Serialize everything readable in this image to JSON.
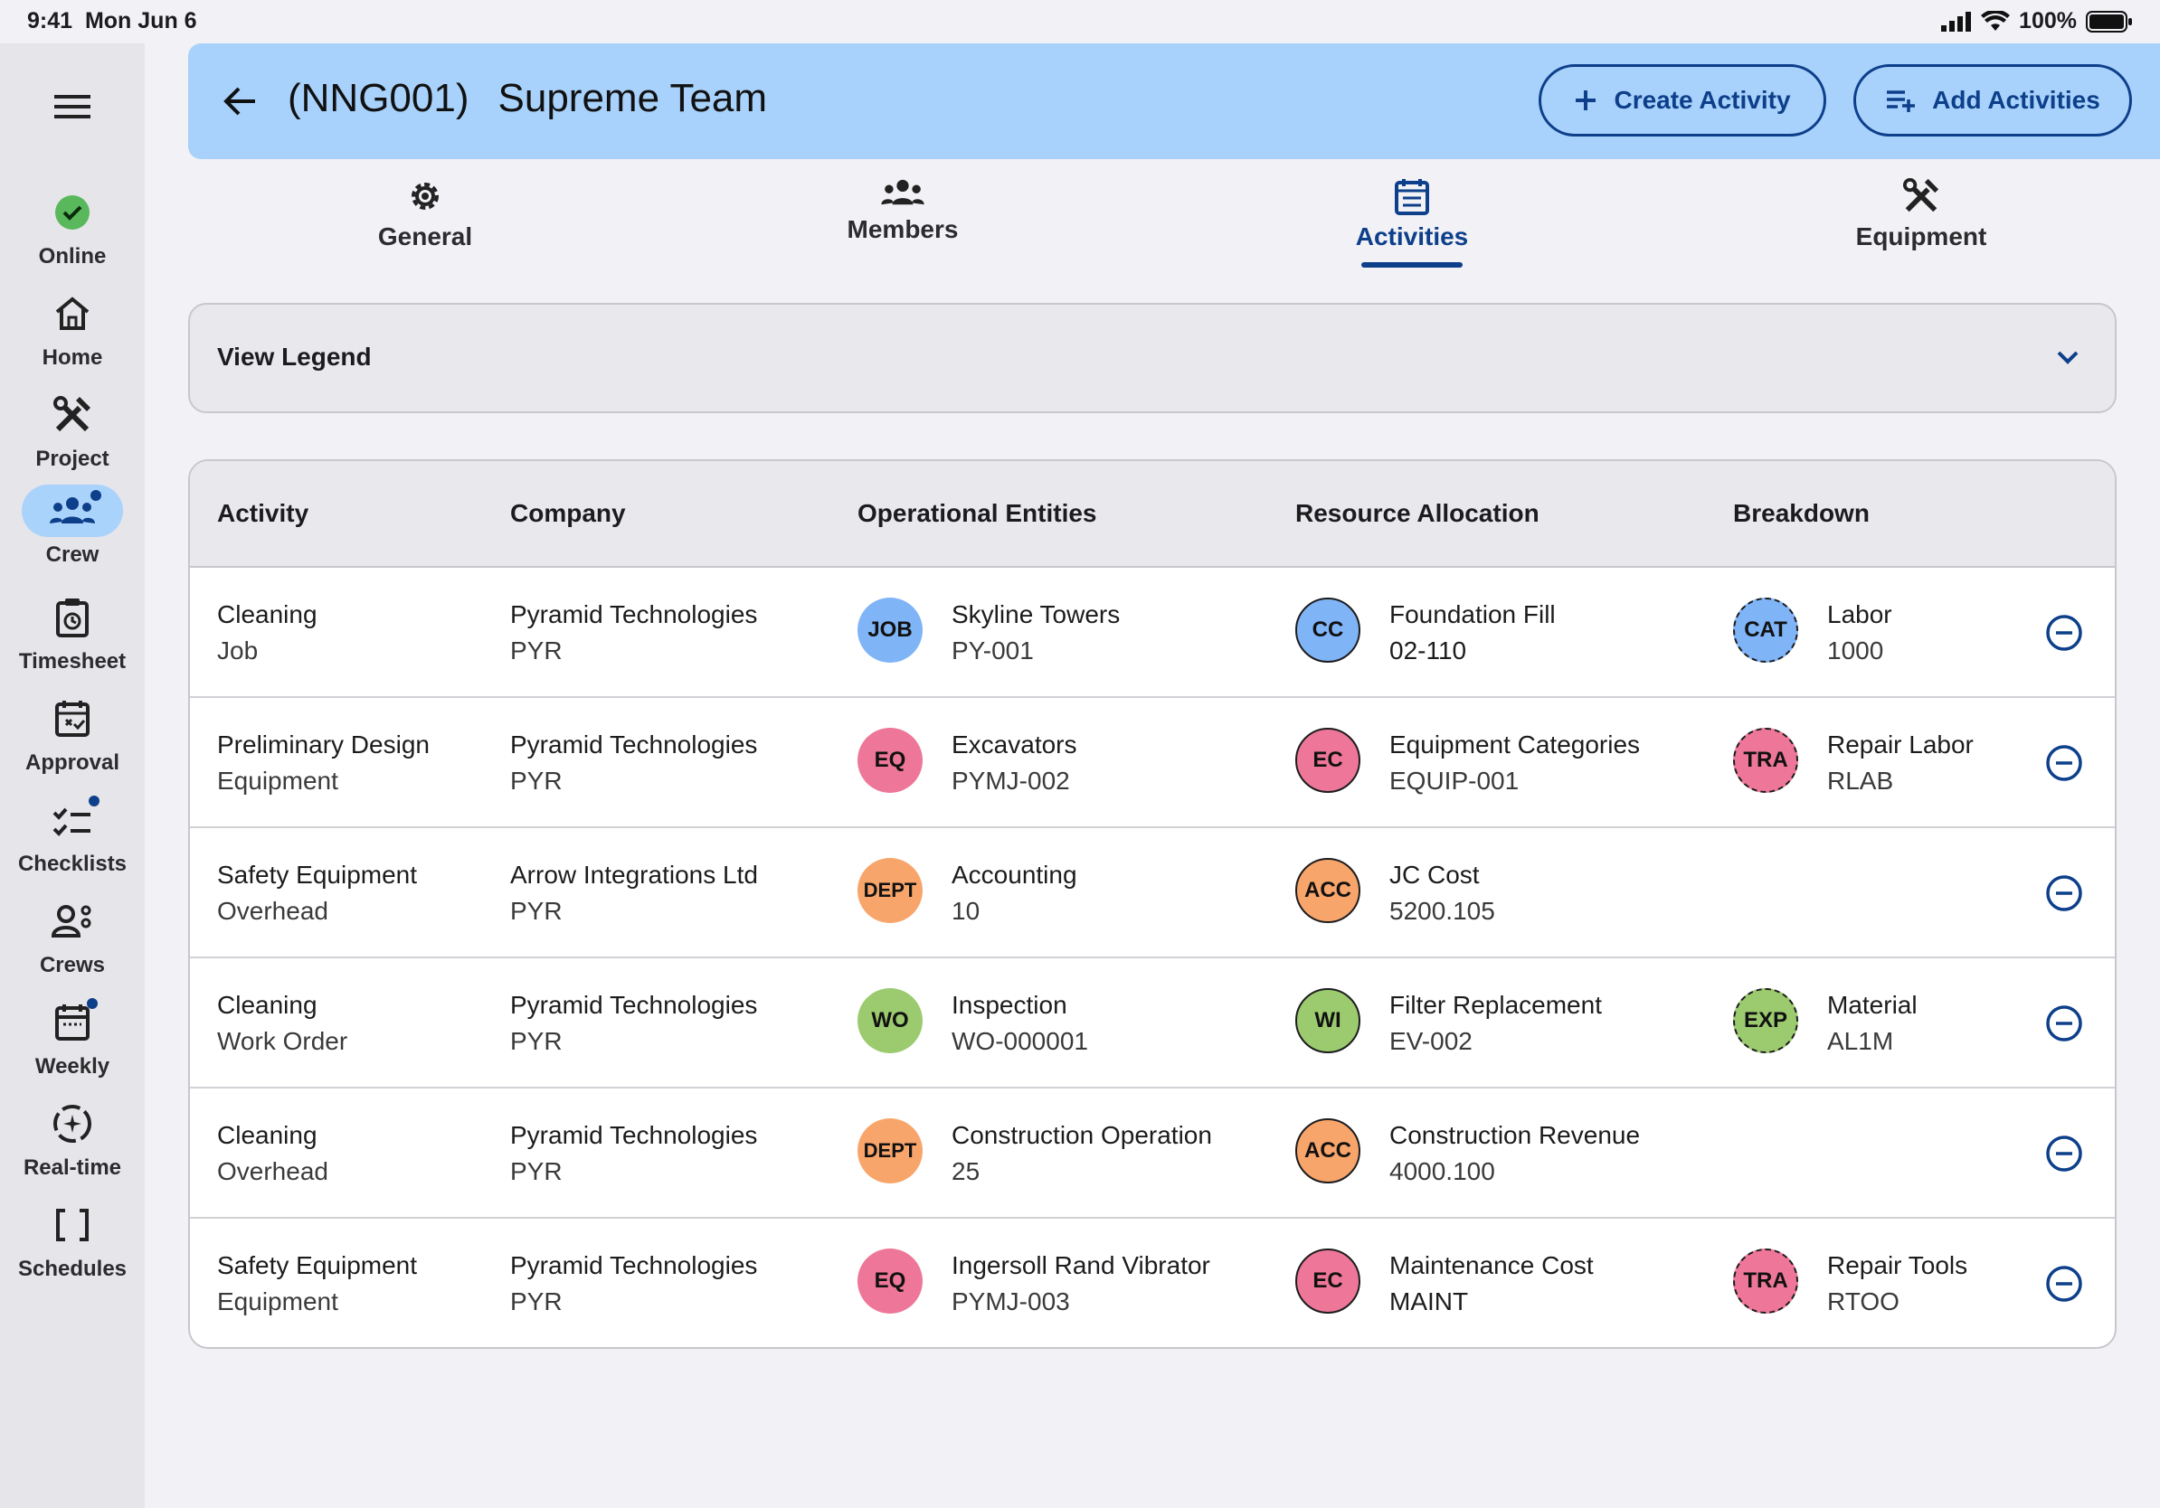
{
  "status": {
    "time": "9:41",
    "date": "Mon Jun 6",
    "battery": "100%"
  },
  "colors": {
    "accent": "#0d3f8a",
    "header_bg": "#a8d2fb",
    "online": "#59b85c",
    "blue": "#7fb4f6",
    "pink": "#ee7799",
    "orange": "#f8a56b",
    "green": "#9ccb6f"
  },
  "sidebar": {
    "items": [
      {
        "label": "Online",
        "icon": "check-circle-icon"
      },
      {
        "label": "Home",
        "icon": "home-icon"
      },
      {
        "label": "Project",
        "icon": "tools-icon"
      },
      {
        "label": "Crew",
        "icon": "group-icon"
      },
      {
        "label": "Timesheet",
        "icon": "timesheet-icon"
      },
      {
        "label": "Approval",
        "icon": "approval-icon"
      },
      {
        "label": "Checklists",
        "icon": "checklist-icon"
      },
      {
        "label": "Crews",
        "icon": "crews-icon"
      },
      {
        "label": "Weekly",
        "icon": "calendar-icon"
      },
      {
        "label": "Real-time",
        "icon": "realtime-icon"
      },
      {
        "label": "Schedules",
        "icon": "brackets-icon"
      }
    ]
  },
  "header": {
    "code": "(NNG001)",
    "name": "Supreme Team",
    "create_label": "Create Activity",
    "add_label": "Add Activities"
  },
  "tabs": [
    {
      "label": "General",
      "icon": "gear-icon"
    },
    {
      "label": "Members",
      "icon": "members-icon"
    },
    {
      "label": "Activities",
      "icon": "activities-icon"
    },
    {
      "label": "Equipment",
      "icon": "equipment-icon"
    }
  ],
  "legend": {
    "title": "View Legend"
  },
  "table": {
    "columns": [
      "Activity",
      "Company",
      "Operational Entities",
      "Resource Allocation",
      "Breakdown"
    ],
    "rows": [
      {
        "activity": "Cleaning",
        "activity_type": "Job",
        "company": "Pyramid Technologies",
        "company_code": "PYR",
        "op_badge": "JOB",
        "op_name": "Skyline Towers",
        "op_code": "PY-001",
        "res_badge": "CC",
        "res_name": "Foundation Fill",
        "res_code": "02-110",
        "bd_badge": "CAT",
        "bd_name": "Labor",
        "bd_code": "1000"
      },
      {
        "activity": "Preliminary Design",
        "activity_type": "Equipment",
        "company": "Pyramid Technologies",
        "company_code": "PYR",
        "op_badge": "EQ",
        "op_name": "Excavators",
        "op_code": "PYMJ-002",
        "res_badge": "EC",
        "res_name": "Equipment Categories",
        "res_code": "EQUIP-001",
        "bd_badge": "TRA",
        "bd_name": "Repair Labor",
        "bd_code": "RLAB"
      },
      {
        "activity": "Safety Equipment",
        "activity_type": "Overhead",
        "company": "Arrow Integrations Ltd",
        "company_code": "PYR",
        "op_badge": "DEPT",
        "op_name": "Accounting",
        "op_code": "10",
        "res_badge": "ACC",
        "res_name": "JC Cost",
        "res_code": "5200.105"
      },
      {
        "activity": "Cleaning",
        "activity_type": "Work Order",
        "company": "Pyramid Technologies",
        "company_code": "PYR",
        "op_badge": "WO",
        "op_name": "Inspection",
        "op_code": "WO-000001",
        "res_badge": "WI",
        "res_name": "Filter Replacement",
        "res_code": "EV-002",
        "bd_badge": "EXP",
        "bd_name": "Material",
        "bd_code": "AL1M"
      },
      {
        "activity": "Cleaning",
        "activity_type": "Overhead",
        "company": "Pyramid Technologies",
        "company_code": "PYR",
        "op_badge": "DEPT",
        "op_name": "Construction Operation",
        "op_code": "25",
        "res_badge": "ACC",
        "res_name": "Construction Revenue",
        "res_code": "4000.100"
      },
      {
        "activity": "Safety Equipment",
        "activity_type": "Equipment",
        "company": "Pyramid Technologies",
        "company_code": "PYR",
        "op_badge": "EQ",
        "op_name": "Ingersoll Rand Vibrator",
        "op_code": "PYMJ-003",
        "res_badge": "EC",
        "res_name": "Maintenance Cost",
        "res_code": "MAINT",
        "bd_badge": "TRA",
        "bd_name": "Repair Tools",
        "bd_code": "RTOO"
      }
    ]
  }
}
